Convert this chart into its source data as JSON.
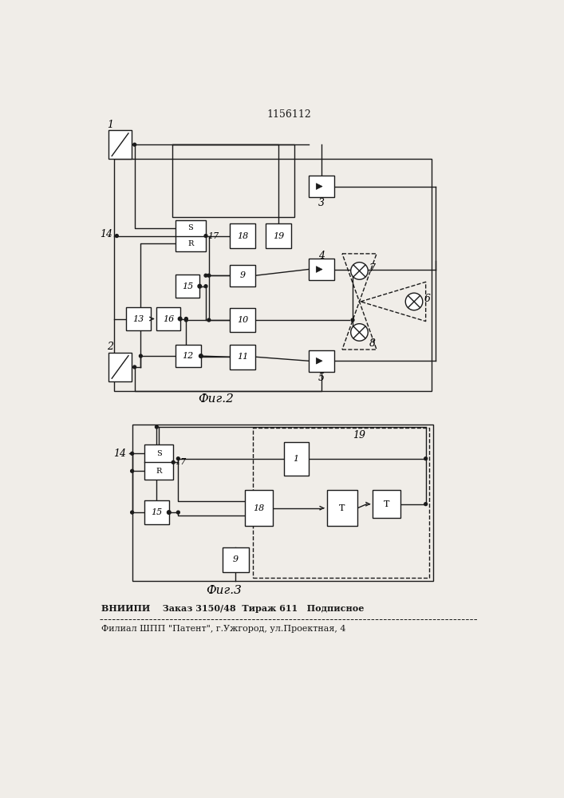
{
  "title": "1156112",
  "fig2_caption": "Фиг.2",
  "fig3_caption": "Фиг.3",
  "footer_line1": "ВНИИПИ    Заказ 3150/48  Тираж 611   Подписное",
  "footer_line2": "Филиал ШПП \"Патент\", г.Ужгород, ул.Проектная, 4",
  "bg_color": "#f0ede8",
  "line_color": "#1a1a1a",
  "box_fill": "#ffffff"
}
